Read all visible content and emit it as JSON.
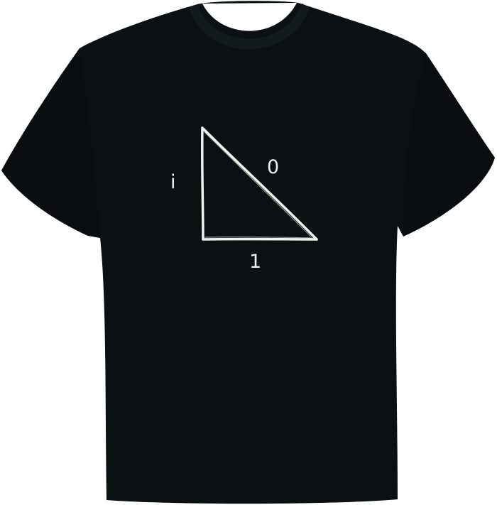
{
  "shirt": {
    "color": "#0b1013",
    "shade_color": "#050809",
    "collar_color": "#121a1e"
  },
  "print": {
    "chalk_color": "#f1f1ee",
    "labels": {
      "vertical_leg": "i",
      "hypotenuse": "0",
      "horizontal_leg": "1"
    }
  }
}
